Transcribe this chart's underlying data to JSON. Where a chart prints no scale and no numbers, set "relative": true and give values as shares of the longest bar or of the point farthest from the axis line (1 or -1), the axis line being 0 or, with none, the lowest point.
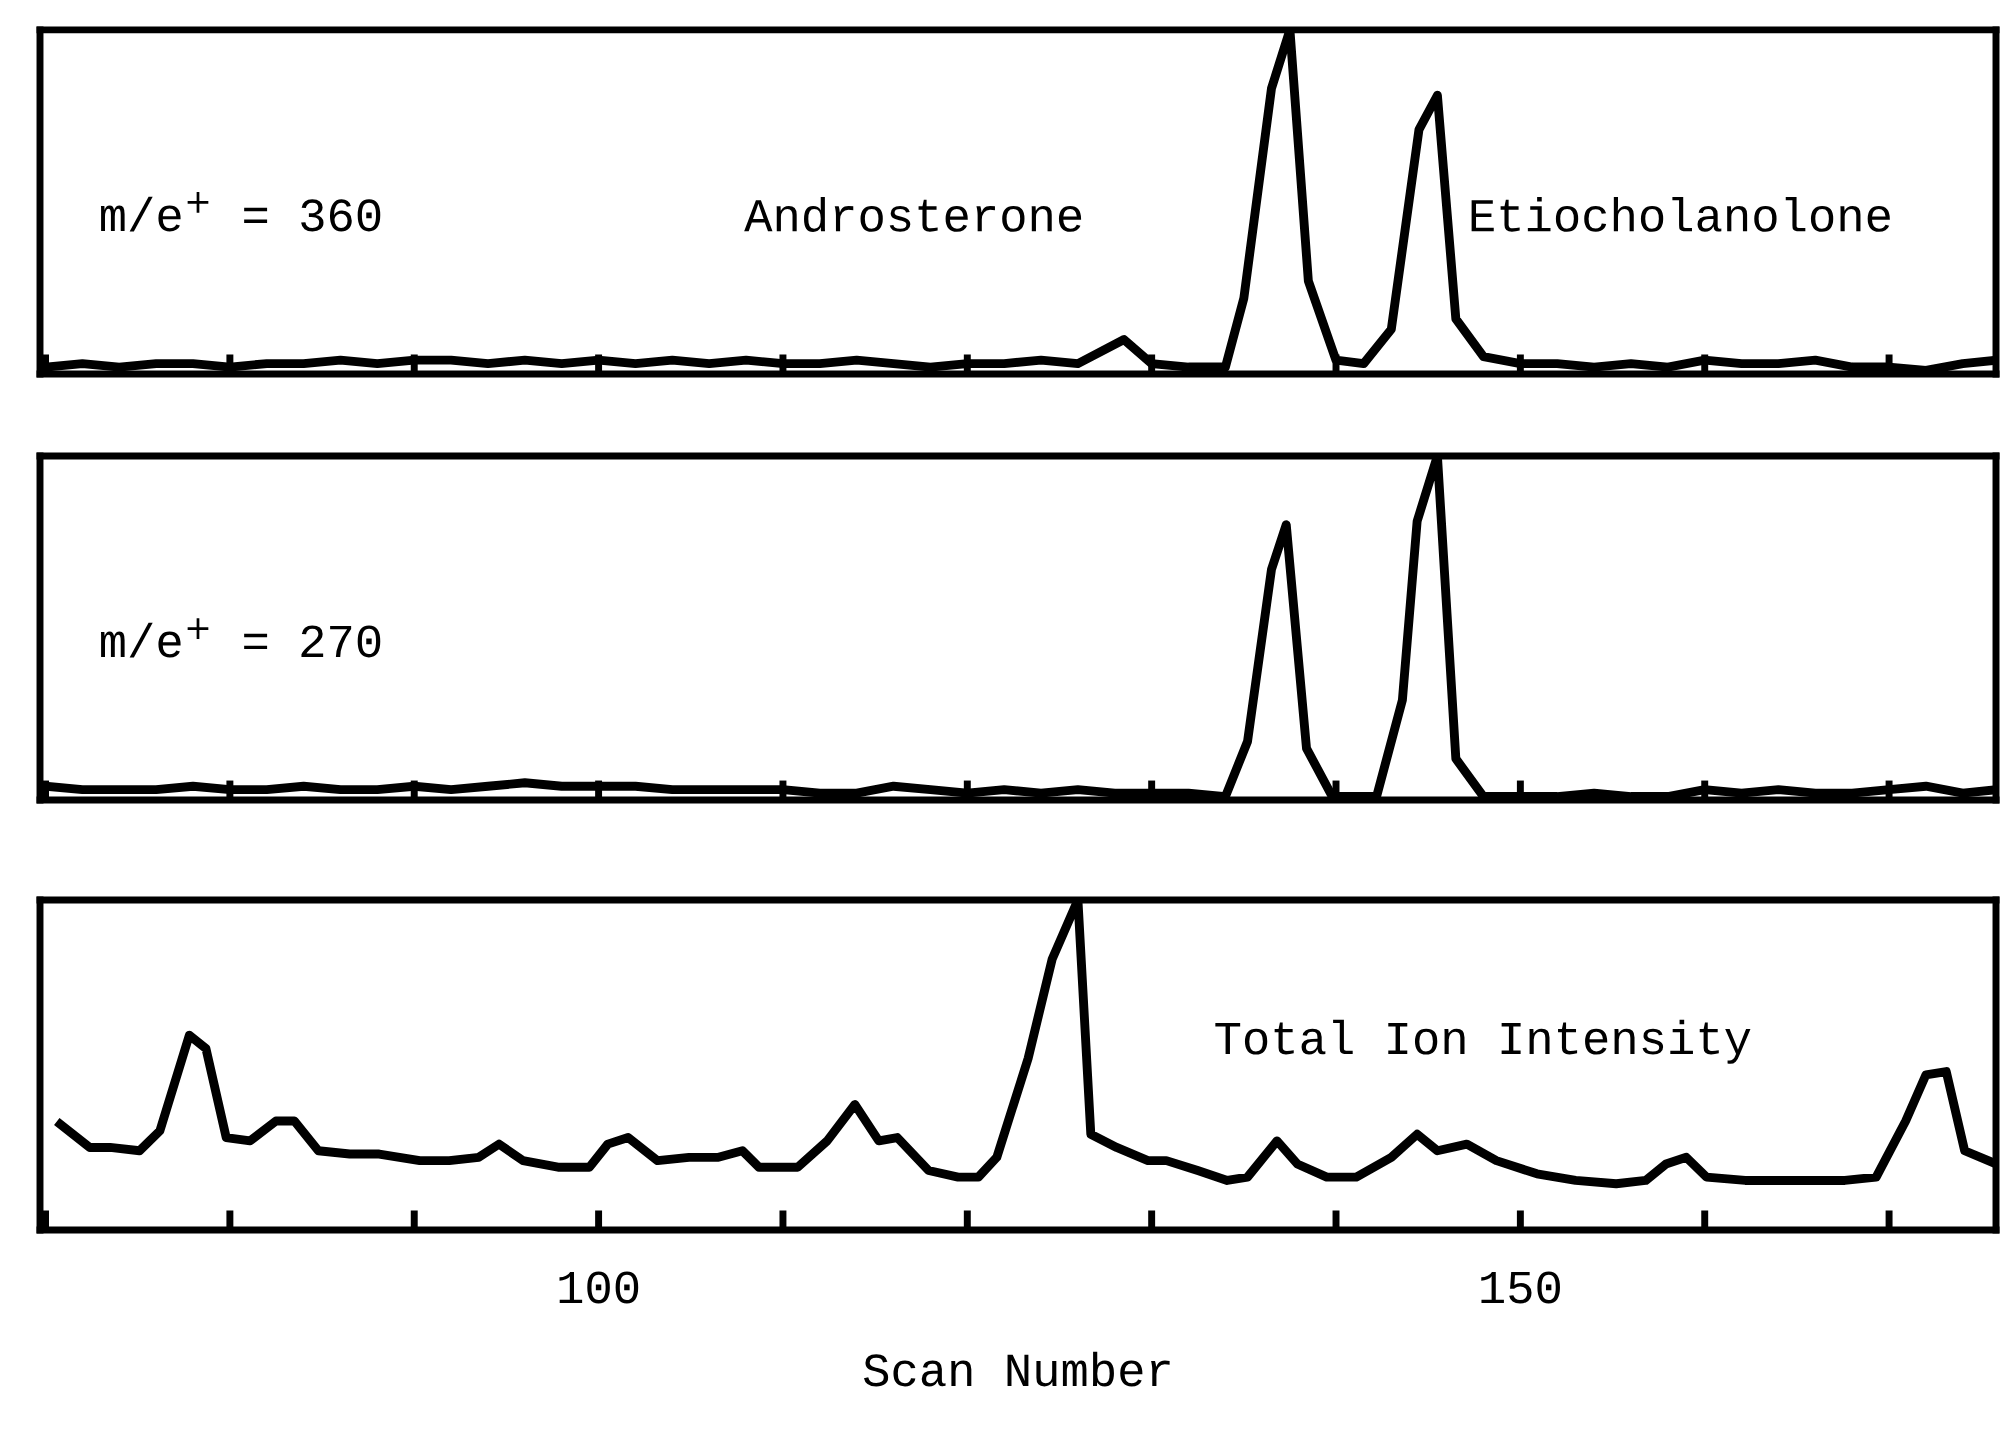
{
  "chart_data": [
    {
      "type": "line",
      "relative": true,
      "xlim": [
        69.7,
        175.8
      ],
      "xticks": [
        {
          "value": 70,
          "label": null
        },
        {
          "value": 80,
          "label": null
        },
        {
          "value": 90,
          "label": null
        },
        {
          "value": 100,
          "label": null
        },
        {
          "value": 110,
          "label": null
        },
        {
          "value": 120,
          "label": null
        },
        {
          "value": 130,
          "label": null
        },
        {
          "value": 140,
          "label": null
        },
        {
          "value": 150,
          "label": null
        },
        {
          "value": 160,
          "label": null
        },
        {
          "value": 170,
          "label": null
        }
      ],
      "tick_labels": false,
      "grid": false,
      "legend": false,
      "marker": "none",
      "line_style": "solid",
      "annotations": [
        "m/e$^{+}$ = 360",
        "Androsterone",
        "Etiocholanolone"
      ],
      "series": [
        {
          "color": "#000000",
          "x": [
            70,
            72,
            74,
            76,
            78,
            80,
            82,
            84,
            86,
            88,
            90,
            92,
            94,
            96,
            98,
            100,
            102,
            104,
            106,
            108,
            110,
            112,
            114,
            116,
            118,
            120,
            122,
            124,
            126,
            128.5,
            130,
            132,
            134,
            135,
            136.5,
            137.5,
            138.5,
            140,
            141.5,
            143,
            144.5,
            145.5,
            146.5,
            148,
            150,
            152,
            154,
            156,
            158,
            160,
            162,
            164,
            166,
            168,
            170,
            172,
            174,
            175.8
          ],
          "values": [
            0.02,
            0.03,
            0.02,
            0.03,
            0.03,
            0.02,
            0.03,
            0.03,
            0.04,
            0.03,
            0.04,
            0.04,
            0.03,
            0.04,
            0.03,
            0.04,
            0.03,
            0.04,
            0.03,
            0.04,
            0.03,
            0.03,
            0.04,
            0.03,
            0.02,
            0.03,
            0.03,
            0.04,
            0.03,
            0.1,
            0.03,
            0.02,
            0.02,
            0.22,
            0.83,
            1,
            0.27,
            0.04,
            0.03,
            0.13,
            0.71,
            0.81,
            0.16,
            0.05,
            0.03,
            0.03,
            0.02,
            0.03,
            0.02,
            0.04,
            0.03,
            0.03,
            0.04,
            0.02,
            0.02,
            0.01,
            0.03,
            0.04
          ]
        }
      ]
    },
    {
      "type": "line",
      "relative": true,
      "xlim": [
        69.7,
        175.8
      ],
      "xticks": [
        {
          "value": 70,
          "label": null
        },
        {
          "value": 80,
          "label": null
        },
        {
          "value": 90,
          "label": null
        },
        {
          "value": 100,
          "label": null
        },
        {
          "value": 110,
          "label": null
        },
        {
          "value": 120,
          "label": null
        },
        {
          "value": 130,
          "label": null
        },
        {
          "value": 140,
          "label": null
        },
        {
          "value": 150,
          "label": null
        },
        {
          "value": 160,
          "label": null
        },
        {
          "value": 170,
          "label": null
        }
      ],
      "tick_labels": false,
      "grid": false,
      "legend": false,
      "marker": "none",
      "line_style": "solid",
      "annotations": [
        "m/e$^{+}$ = 270"
      ],
      "series": [
        {
          "color": "#000000",
          "x": [
            70,
            72,
            74,
            76,
            78,
            80,
            82,
            84,
            86,
            88,
            90,
            92,
            94,
            96,
            98,
            100,
            102,
            104,
            106,
            108,
            110,
            112,
            114,
            116,
            118,
            120,
            122,
            124,
            126,
            128,
            130,
            132,
            134,
            135.2,
            136.5,
            137.3,
            138.4,
            139.8,
            142.2,
            143.6,
            144.4,
            145.5,
            146.5,
            148,
            150,
            152,
            154,
            156,
            158,
            160,
            162,
            164,
            166,
            168,
            170,
            172,
            174,
            175.8
          ],
          "values": [
            0.04,
            0.03,
            0.03,
            0.03,
            0.04,
            0.03,
            0.03,
            0.04,
            0.03,
            0.03,
            0.04,
            0.03,
            0.04,
            0.05,
            0.04,
            0.04,
            0.04,
            0.03,
            0.03,
            0.03,
            0.03,
            0.02,
            0.02,
            0.04,
            0.03,
            0.02,
            0.03,
            0.02,
            0.03,
            0.02,
            0.02,
            0.02,
            0.01,
            0.17,
            0.67,
            0.8,
            0.15,
            0.01,
            0.01,
            0.29,
            0.81,
            1,
            0.12,
            0.01,
            0.01,
            0.01,
            0.02,
            0.01,
            0.01,
            0.03,
            0.02,
            0.03,
            0.02,
            0.02,
            0.03,
            0.04,
            0.02,
            0.03
          ]
        }
      ]
    },
    {
      "type": "line",
      "relative": true,
      "xlim": [
        69.7,
        175.8
      ],
      "xticks": [
        {
          "value": 70,
          "label": null
        },
        {
          "value": 80,
          "label": null
        },
        {
          "value": 90,
          "label": null
        },
        100,
        {
          "value": 110,
          "label": null
        },
        {
          "value": 120,
          "label": null
        },
        {
          "value": 130,
          "label": null
        },
        {
          "value": 140,
          "label": null
        },
        150,
        {
          "value": 160,
          "label": null
        },
        {
          "value": 170,
          "label": null
        }
      ],
      "tick_labels": "x",
      "grid": false,
      "legend": false,
      "marker": "none",
      "line_style": "solid",
      "xlabel": "Scan Number",
      "annotations": [
        "Total Ion Intensity"
      ],
      "series": [
        {
          "color": "#000000",
          "x": [
            70.8,
            72.4,
            73.5,
            75.1,
            76.2,
            77.8,
            78.7,
            79.8,
            81.1,
            82.5,
            83.5,
            84.8,
            86.5,
            88.1,
            90.3,
            91.9,
            93.5,
            94.6,
            95.9,
            97.8,
            99.5,
            100.5,
            101.6,
            103.2,
            104.9,
            106.5,
            107.8,
            108.7,
            110.8,
            112.4,
            113.9,
            115.2,
            116.2,
            117.9,
            119.5,
            120.6,
            121.6,
            123.3,
            124.6,
            126.0,
            126.7,
            128.1,
            129.8,
            130.8,
            132.5,
            134.1,
            135.2,
            136.8,
            137.9,
            139.5,
            141.1,
            143.0,
            144.4,
            145.5,
            147.1,
            148.7,
            150.9,
            153.0,
            155.2,
            156.8,
            157.9,
            159.0,
            160.1,
            162.2,
            164.9,
            167.6,
            169.3,
            170.9,
            172.0,
            173.1,
            174.1,
            175.8
          ],
          "values": [
            0.32,
            0.25,
            0.25,
            0.24,
            0.3,
            0.59,
            0.55,
            0.28,
            0.27,
            0.33,
            0.33,
            0.24,
            0.23,
            0.23,
            0.21,
            0.21,
            0.22,
            0.26,
            0.21,
            0.19,
            0.19,
            0.26,
            0.28,
            0.21,
            0.22,
            0.22,
            0.24,
            0.19,
            0.19,
            0.27,
            0.38,
            0.27,
            0.28,
            0.18,
            0.16,
            0.16,
            0.22,
            0.52,
            0.82,
            1,
            0.29,
            0.25,
            0.21,
            0.21,
            0.18,
            0.15,
            0.16,
            0.27,
            0.2,
            0.16,
            0.16,
            0.22,
            0.29,
            0.24,
            0.26,
            0.21,
            0.17,
            0.15,
            0.14,
            0.15,
            0.2,
            0.22,
            0.16,
            0.15,
            0.15,
            0.15,
            0.16,
            0.33,
            0.47,
            0.48,
            0.24,
            0.2
          ]
        }
      ]
    }
  ]
}
